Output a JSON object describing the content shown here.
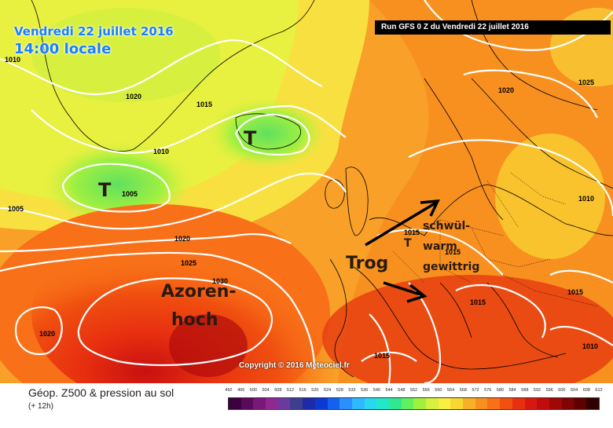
{
  "header": {
    "date_label": "Vendredi 22 juillet 2016",
    "time_label": "14:00 locale",
    "run_label": "Run GFS 0 Z du Vendredi 22 juillet 2016"
  },
  "copyright": "Copyright © 2016 Meteociel.fr",
  "footer": {
    "title": "Géop. Z500 & pression au sol",
    "subtitle": "(+ 12h)"
  },
  "legend": {
    "ticks": [
      "492",
      "496",
      "500",
      "504",
      "508",
      "512",
      "516",
      "520",
      "524",
      "528",
      "532",
      "536",
      "540",
      "544",
      "548",
      "552",
      "556",
      "560",
      "564",
      "568",
      "572",
      "576",
      "580",
      "584",
      "588",
      "592",
      "596",
      "600",
      "604",
      "608",
      "612"
    ],
    "colors": [
      "#3d003d",
      "#5a0a5a",
      "#781878",
      "#902890",
      "#6a3aa0",
      "#3e3e8e",
      "#1e2aa8",
      "#0a3ad0",
      "#1660f0",
      "#2a90ff",
      "#30b8ff",
      "#28d8f0",
      "#20e8c8",
      "#30e890",
      "#60f060",
      "#a0f040",
      "#d8f040",
      "#f8f040",
      "#f8d830",
      "#f8b028",
      "#f89020",
      "#f87018",
      "#f05010",
      "#e83010",
      "#d81810",
      "#c00c0c",
      "#a00808",
      "#800404",
      "#600000",
      "#300000"
    ]
  },
  "isobars": [
    "1010",
    "1020",
    "1015",
    "1010",
    "1005",
    "1005",
    "1020",
    "1025",
    "1030",
    "1020",
    "1015",
    "1015",
    "1015",
    "1015",
    "1010",
    "1010",
    "1025",
    "1020",
    "1015"
  ],
  "annotations": {
    "low1": "T",
    "low2": "T",
    "high": [
      "Azoren-",
      "hoch"
    ],
    "trough": "Trog",
    "weather": [
      "schwül-",
      "warm",
      "gewittrig"
    ]
  }
}
